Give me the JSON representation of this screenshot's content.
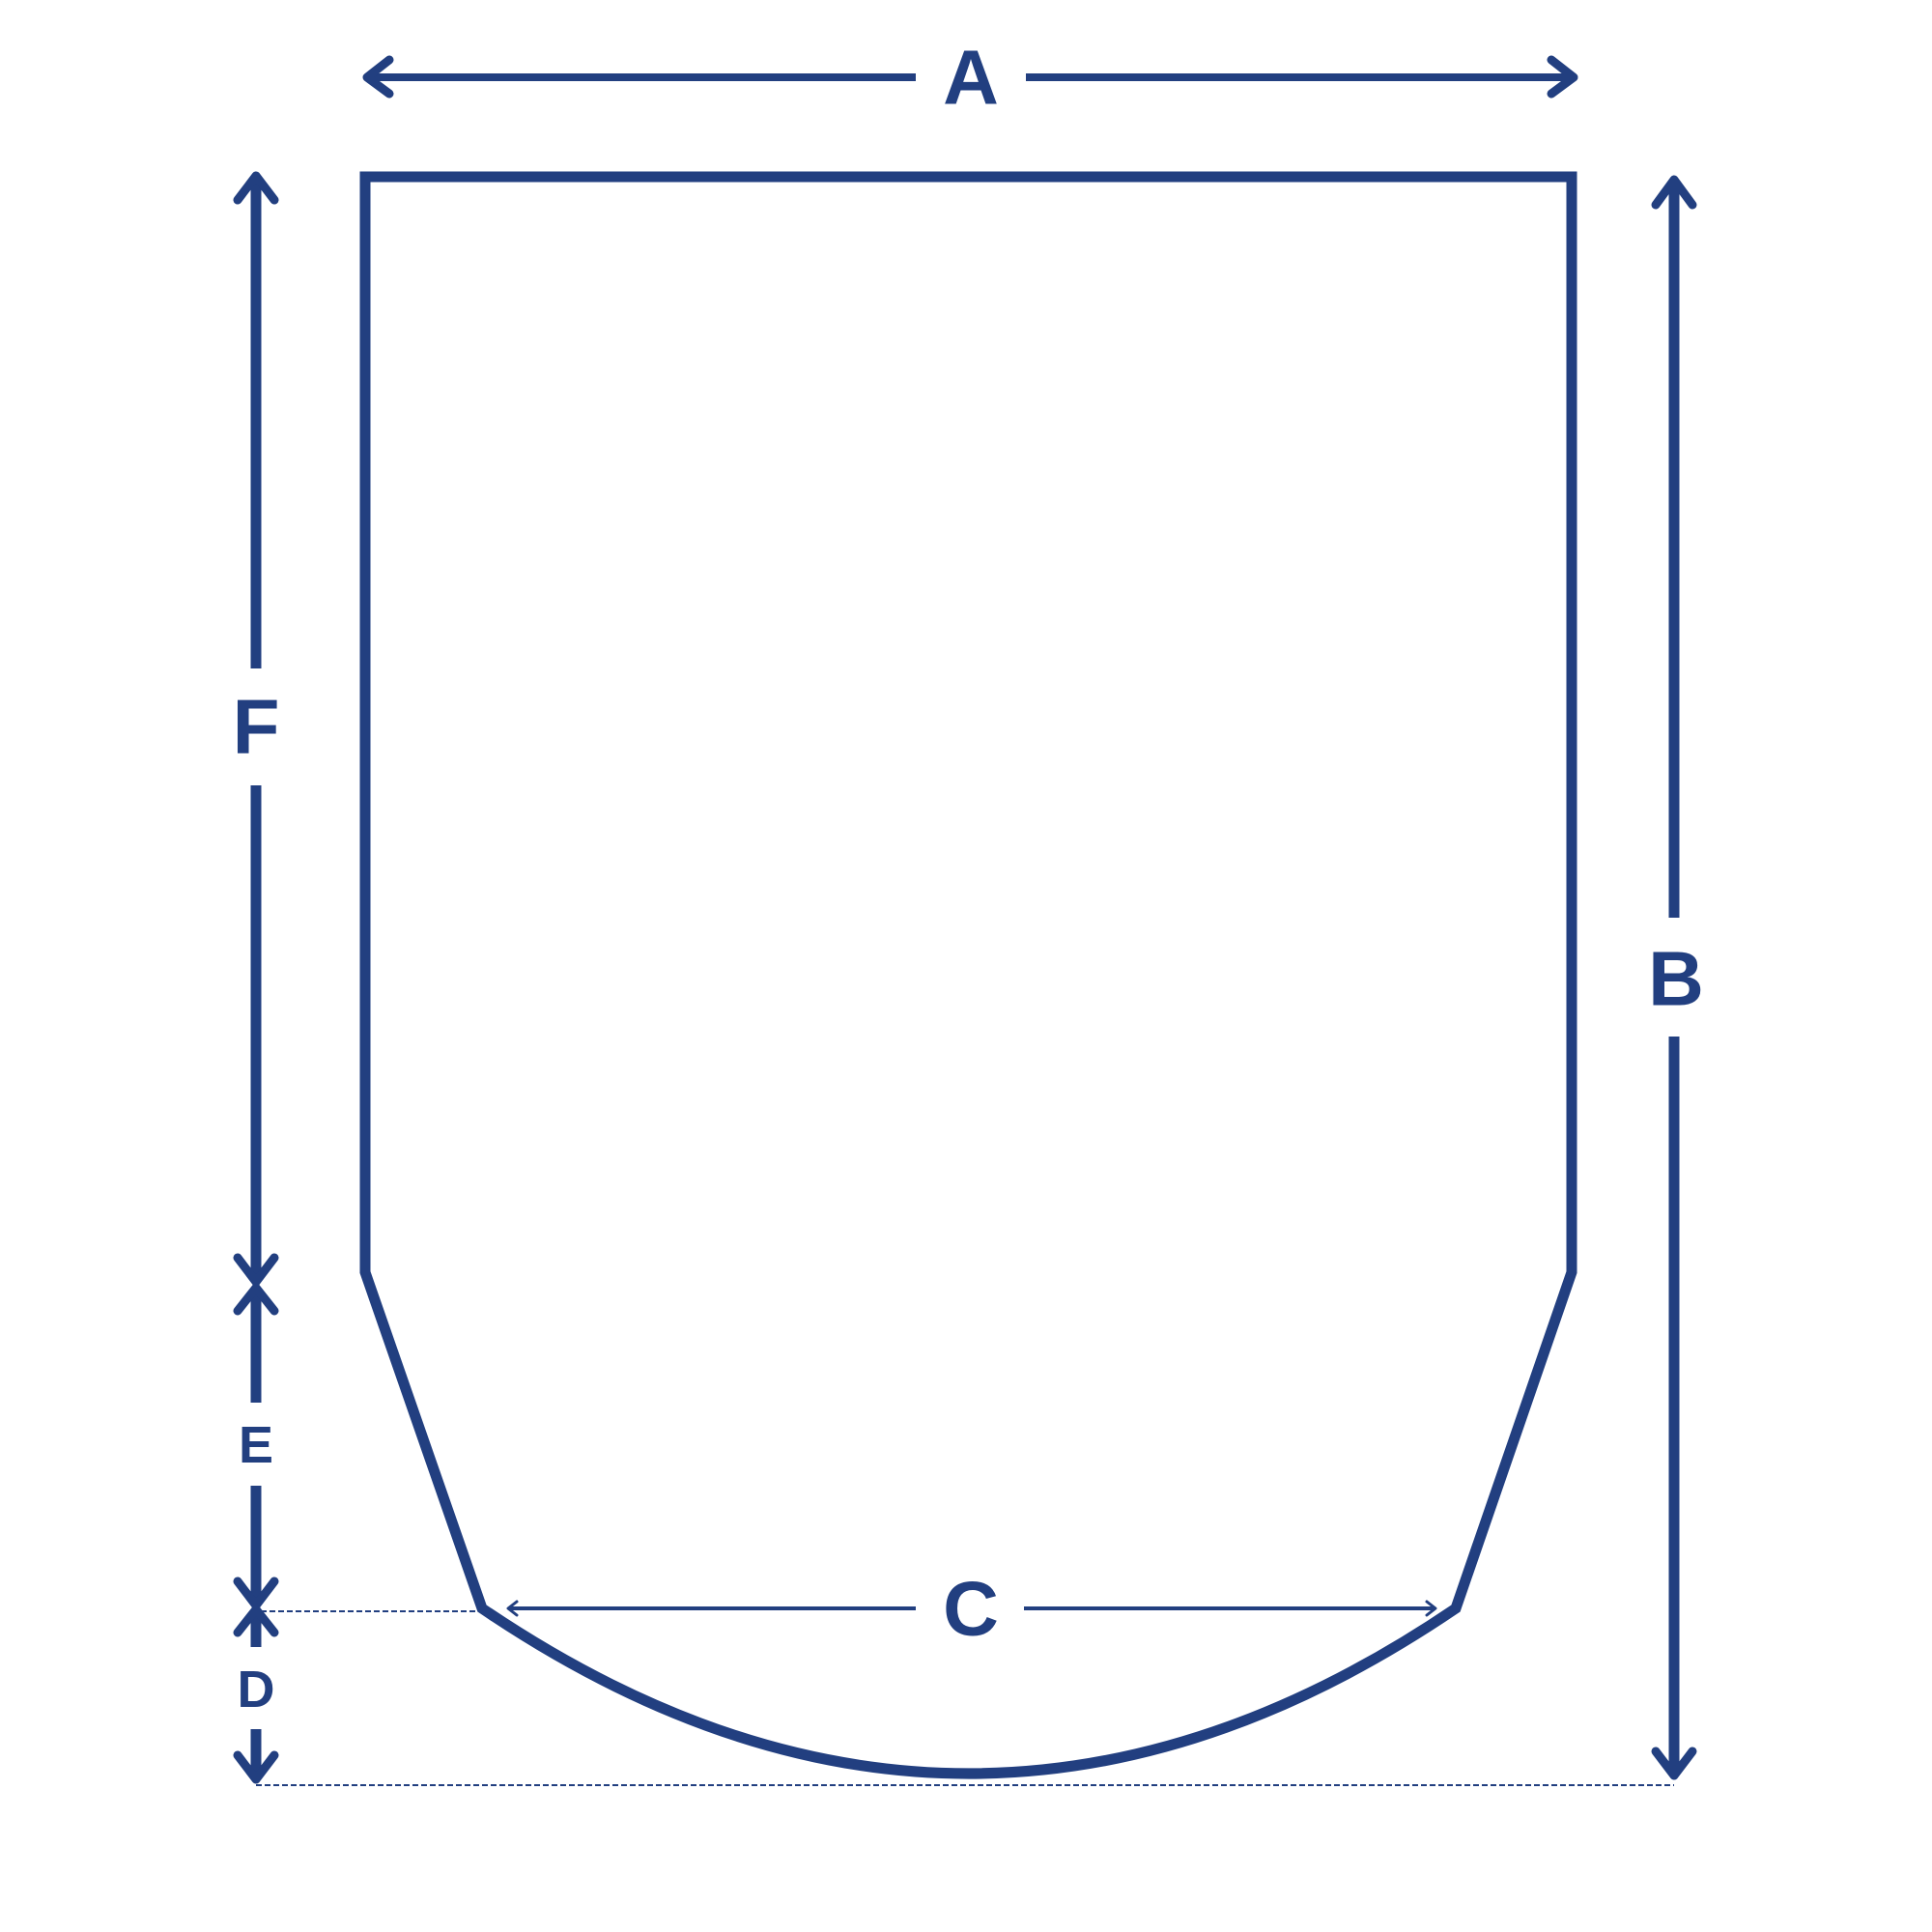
{
  "colors": {
    "stroke": "#223F80",
    "background": "#FFFFFF"
  },
  "labels": {
    "a": "A",
    "b": "B",
    "c": "C",
    "d": "D",
    "e": "E",
    "f": "F"
  }
}
